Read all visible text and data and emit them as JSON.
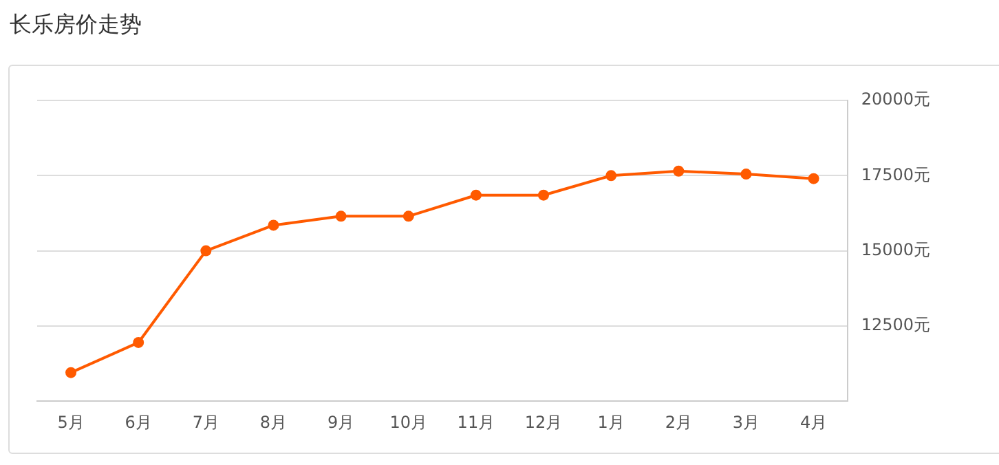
{
  "chart_data": {
    "type": "line",
    "title": "长乐房价走势",
    "categories": [
      "5月",
      "6月",
      "7月",
      "8月",
      "9月",
      "10月",
      "11月",
      "12月",
      "1月",
      "2月",
      "3月",
      "4月"
    ],
    "series": [
      {
        "color": "#ff5a00",
        "values": [
          10950,
          11950,
          15000,
          15850,
          16150,
          16150,
          16850,
          16850,
          17500,
          17650,
          17550,
          17400
        ]
      }
    ],
    "ylim": [
      10000,
      20000
    ],
    "yticks": [
      {
        "value": 12500,
        "label": "12500元"
      },
      {
        "value": 15000,
        "label": "15000元"
      },
      {
        "value": 17500,
        "label": "17500元"
      },
      {
        "value": 20000,
        "label": "20000元"
      }
    ],
    "grid": "y",
    "marker": "circle",
    "line_style": "solid",
    "legend": false
  }
}
